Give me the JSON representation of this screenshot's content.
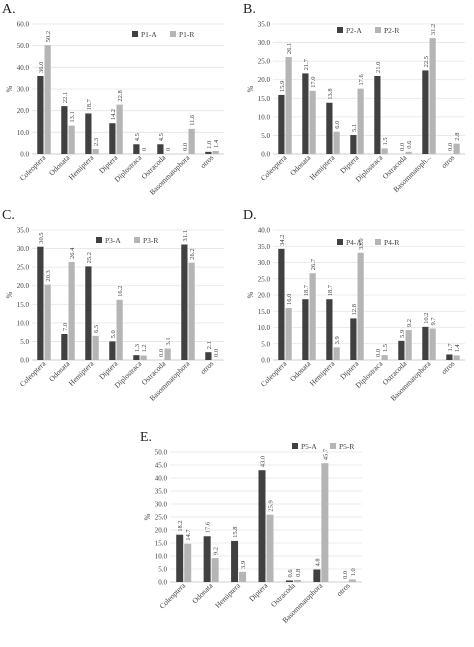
{
  "colors": {
    "A": "#404040",
    "R": "#b5b5b5",
    "axis": "#bfbfbf",
    "grid": "#e4e4e4",
    "text": "#404040"
  },
  "chart_data": [
    {
      "type": "bar",
      "panel": "A.",
      "ylabel": "%",
      "ylim": [
        0,
        60
      ],
      "yticks": [
        "0.0",
        "10.0",
        "20.0",
        "30.0",
        "40.0",
        "50.0",
        "60.0"
      ],
      "categories": [
        "Coleoptera",
        "Odonata",
        "Hemiptera",
        "Diptera",
        "Diplostraca",
        "Ostracoda",
        "Basommatophora",
        "otros"
      ],
      "series": [
        {
          "name": "P1-A",
          "values": [
            36.0,
            22.1,
            18.7,
            14.2,
            4.5,
            4.5,
            0.0,
            1.0
          ],
          "labels": [
            "36.0",
            "22.1",
            "18.7",
            "14.2",
            "4.5",
            "4.5",
            "0.0",
            "1.0"
          ]
        },
        {
          "name": "P1-R",
          "values": [
            50.2,
            13.1,
            2.3,
            22.8,
            0,
            0,
            11.6,
            1.4
          ],
          "labels": [
            "50.2",
            "13.1",
            "2.3",
            "22.8",
            "0",
            "0",
            "11.6",
            "1.4"
          ]
        }
      ],
      "legend": "top-right"
    },
    {
      "type": "bar",
      "panel": "B.",
      "ylabel": "%",
      "ylim": [
        0,
        35
      ],
      "yticks": [
        "0.0",
        "5.0",
        "10.0",
        "15.0",
        "20.0",
        "25.0",
        "30.0",
        "35.0"
      ],
      "categories": [
        "Coleoptera",
        "Odonata",
        "Hemiptera",
        "Diptera",
        "Diplostraca",
        "Ostracoda",
        "Basommatoph...",
        "otros"
      ],
      "series": [
        {
          "name": "P2-A",
          "values": [
            15.9,
            21.7,
            13.8,
            5.1,
            21.0,
            0.0,
            22.5,
            0.0
          ],
          "labels": [
            "15.9",
            "21.7",
            "13.8",
            "5.1",
            "21.0",
            "0.0",
            "22.5",
            "0.0"
          ]
        },
        {
          "name": "P2-R",
          "values": [
            26.1,
            17.0,
            6.0,
            17.6,
            1.5,
            0.6,
            31.2,
            2.8
          ],
          "labels": [
            "26.1",
            "17.0",
            "6.0",
            "17.6",
            "1.5",
            "0.6",
            "31.2",
            "2.8"
          ]
        }
      ],
      "legend": "top-right"
    },
    {
      "type": "bar",
      "panel": "C.",
      "ylabel": "%",
      "ylim": [
        0,
        35
      ],
      "yticks": [
        "0.0",
        "5.0",
        "10.0",
        "15.0",
        "20.0",
        "25.0",
        "30.0",
        "35.0"
      ],
      "categories": [
        "Coleoptera",
        "Odonata",
        "Hemiptera",
        "Diptera",
        "Diplostraca",
        "Ostracoda",
        "Basommatophora",
        "otros"
      ],
      "series": [
        {
          "name": "P3-A",
          "values": [
            30.5,
            7.0,
            25.2,
            5.0,
            1.3,
            0.0,
            31.1,
            2.1
          ],
          "labels": [
            "30.5",
            "7.0",
            "25.2",
            "5.0",
            "1.3",
            "0.0",
            "31.1",
            "2.1"
          ]
        },
        {
          "name": "P3-R",
          "values": [
            20.3,
            26.4,
            6.5,
            16.2,
            1.2,
            3.1,
            26.2,
            0.0
          ],
          "labels": [
            "20.3",
            "26.4",
            "6.5",
            "16.2",
            "1.2",
            "3.1",
            "26.2",
            "0.0"
          ]
        }
      ],
      "legend": "top-right"
    },
    {
      "type": "bar",
      "panel": "D.",
      "ylabel": "%",
      "ylim": [
        0,
        40
      ],
      "yticks": [
        "0.0",
        "5.0",
        "10.0",
        "15.0",
        "20.0",
        "25.0",
        "30.0",
        "35.0",
        "40.0"
      ],
      "categories": [
        "Coleoptera",
        "Odonata",
        "Hemiptera",
        "Diptera",
        "Diplostraca",
        "Ostracoda",
        "Basommatophora",
        "otros"
      ],
      "series": [
        {
          "name": "P4-A",
          "values": [
            34.2,
            18.7,
            18.7,
            12.8,
            0.0,
            5.9,
            10.2,
            1.7
          ],
          "labels": [
            "34.2",
            "18.7",
            "18.7",
            "12.8",
            "0.0",
            "5.9",
            "10.2",
            "1.7"
          ]
        },
        {
          "name": "P4-R",
          "values": [
            16.0,
            26.7,
            3.9,
            33.0,
            1.5,
            9.2,
            9.7,
            1.4
          ],
          "labels": [
            "16.0",
            "26.7",
            "3.9",
            "33.0",
            "1.5",
            "9.2",
            "9.7",
            "1.4"
          ]
        }
      ],
      "legend": "top-right"
    },
    {
      "type": "bar",
      "panel": "E.",
      "ylabel": "%",
      "ylim": [
        0,
        50
      ],
      "yticks": [
        "0.0",
        "5.0",
        "10.0",
        "15.0",
        "20.0",
        "25.0",
        "30.0",
        "35.0",
        "40.0",
        "45.0",
        "50.0"
      ],
      "categories": [
        "Coleoptera",
        "Odonata",
        "Hemiptera",
        "Diptera",
        "Ostracoda",
        "Basommatophora",
        "otros"
      ],
      "series": [
        {
          "name": "P5-A",
          "values": [
            18.2,
            17.6,
            15.8,
            43.0,
            0.6,
            4.8,
            0.0
          ],
          "labels": [
            "18.2",
            "17.6",
            "15.8",
            "43.0",
            "0.6",
            "4.8",
            "0.0"
          ]
        },
        {
          "name": "P5-R",
          "values": [
            14.7,
            9.2,
            3.9,
            25.9,
            0.8,
            45.7,
            1.0
          ],
          "labels": [
            "14.7",
            "9.2",
            "3.9",
            "25.9",
            "0.8",
            "45.7",
            "1.0"
          ]
        }
      ],
      "legend": "top-right"
    }
  ]
}
